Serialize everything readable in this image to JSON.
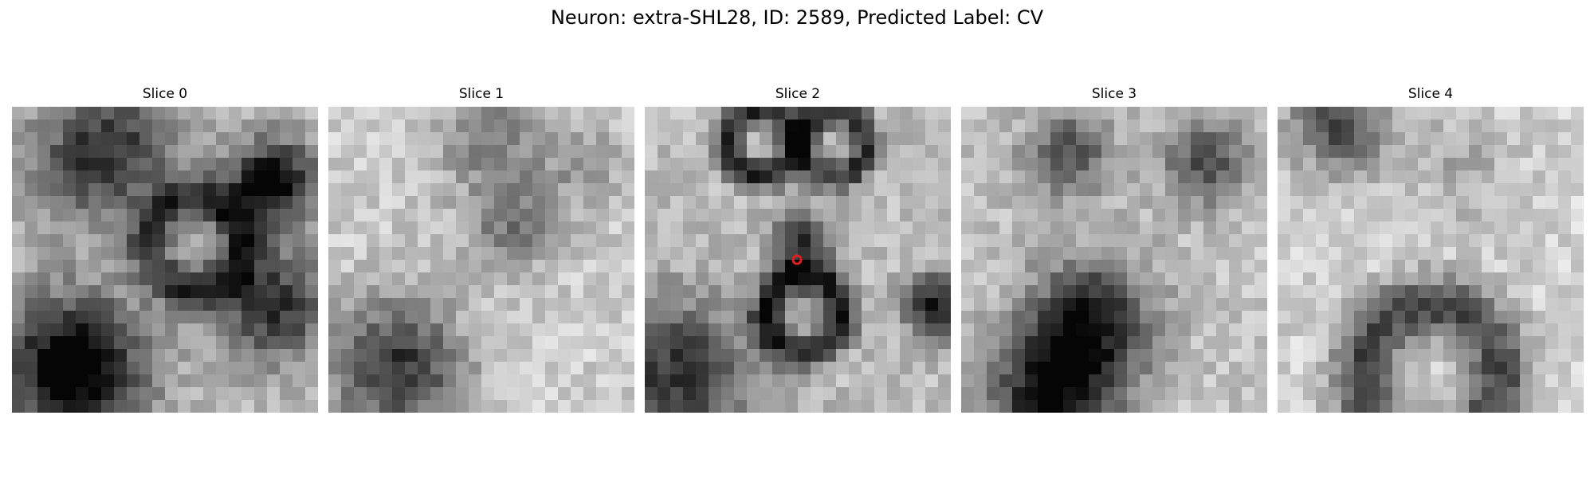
{
  "figure": {
    "title": "Neuron: extra-SHL28, ID: 2589, Predicted Label: CV"
  },
  "slices": [
    {
      "label": "Slice 0",
      "marker": false
    },
    {
      "label": "Slice 1",
      "marker": false
    },
    {
      "label": "Slice 2",
      "marker": true
    },
    {
      "label": "Slice 3",
      "marker": false
    },
    {
      "label": "Slice 4",
      "marker": false
    }
  ],
  "marker_color": "#e02020"
}
